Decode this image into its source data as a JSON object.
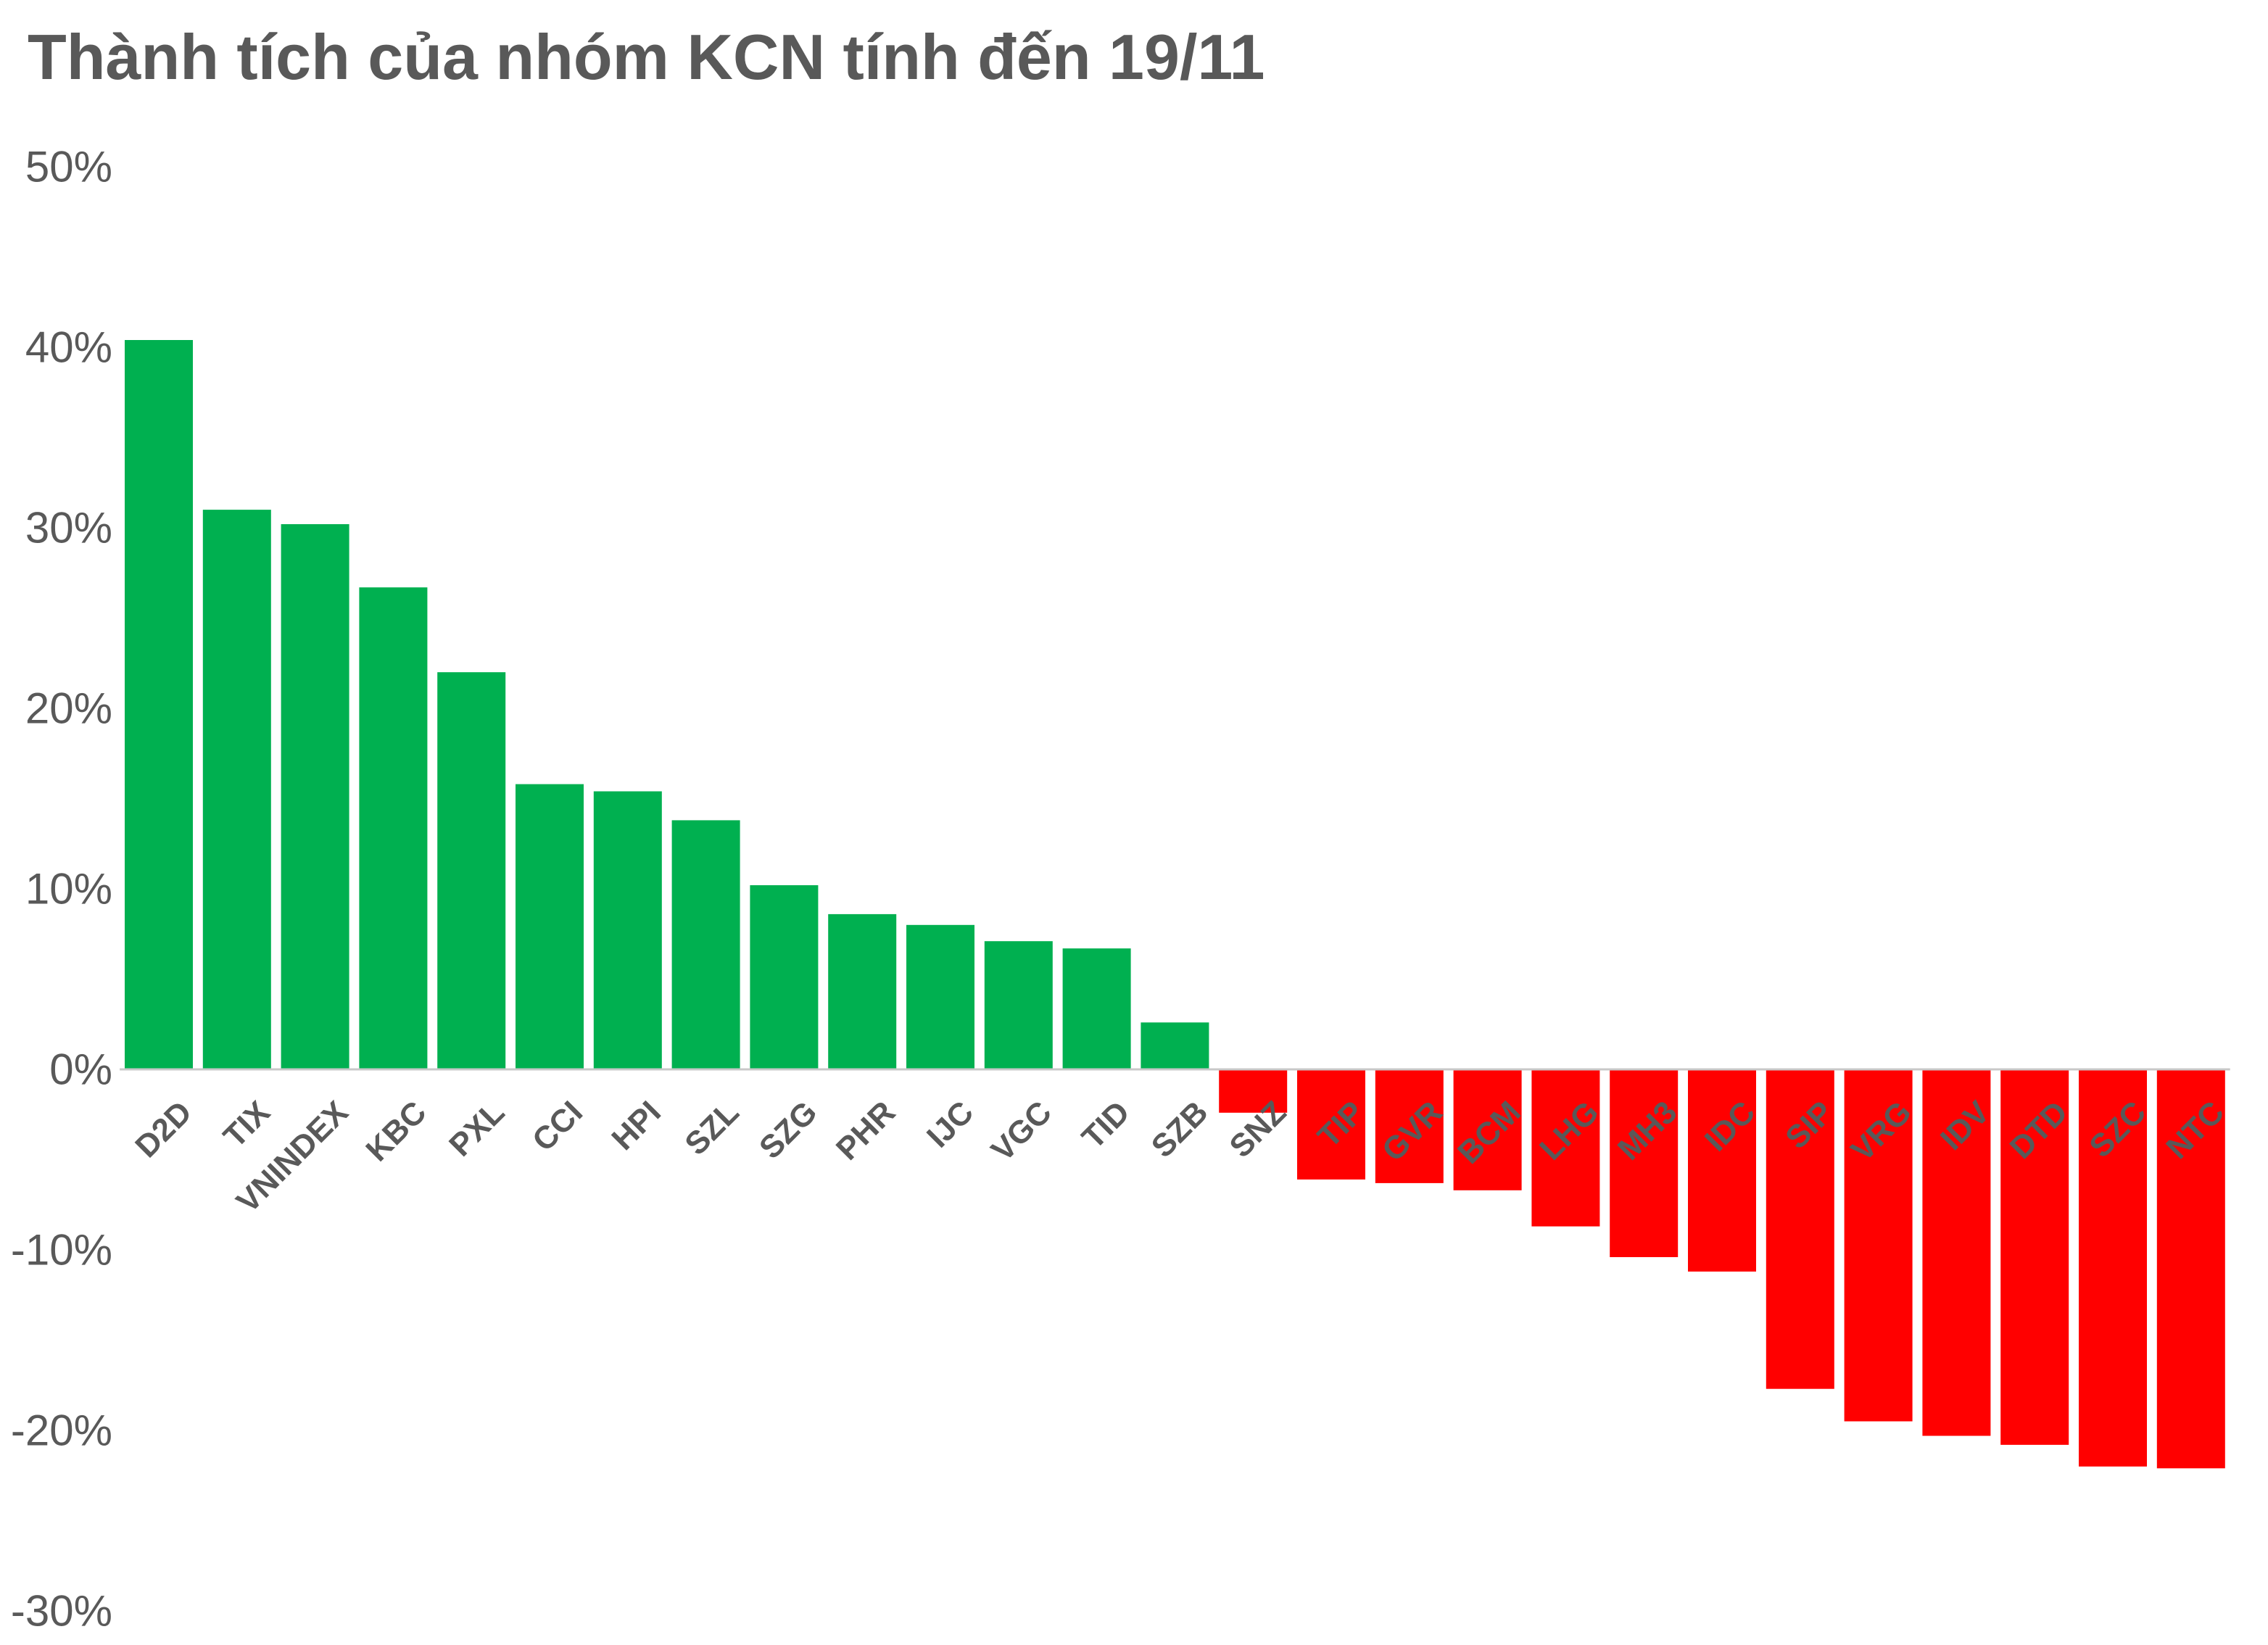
{
  "chart_data": {
    "type": "bar",
    "title": "Thành tích của nhóm KCN tính đến 19/11",
    "xlabel": "",
    "ylabel": "",
    "ylim": [
      -30,
      50
    ],
    "y_ticks": [
      50,
      40,
      30,
      20,
      10,
      0,
      -10,
      -20,
      -30
    ],
    "y_tick_labels": [
      "50%",
      "40%",
      "30%",
      "20%",
      "10%",
      "0%",
      "-10%",
      "-20%",
      "-30%"
    ],
    "grid": false,
    "legend": "none",
    "categories": [
      "D2D",
      "TIX",
      "VNINDEX",
      "KBC",
      "PXL",
      "CCI",
      "HPI",
      "SZL",
      "SZG",
      "PHR",
      "IJC",
      "VGC",
      "TID",
      "SZB",
      "SNZ",
      "TIP",
      "GVR",
      "BCM",
      "LHG",
      "MH3",
      "IDC",
      "SIP",
      "VRG",
      "IDV",
      "DTD",
      "SZC",
      "NTC"
    ],
    "values": [
      40.4,
      31.0,
      30.2,
      26.7,
      22.0,
      15.8,
      15.4,
      13.8,
      10.2,
      8.6,
      8.0,
      7.1,
      6.7,
      2.6,
      -2.4,
      -6.1,
      -6.3,
      -6.7,
      -8.7,
      -10.4,
      -11.2,
      -17.7,
      -19.5,
      -20.3,
      -20.8,
      -22.0,
      -22.1
    ],
    "colors": {
      "positive": "#00b050",
      "negative": "#ff0000",
      "text": "#595959",
      "axis": "#c8c8c8"
    }
  }
}
